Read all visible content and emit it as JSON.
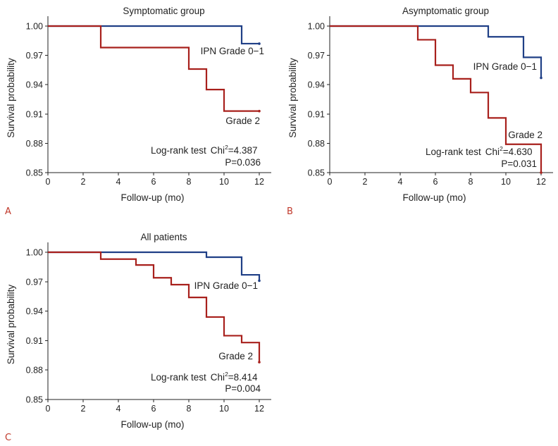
{
  "colors": {
    "ipn_grade_0_1": "#1f3f86",
    "grade_2": "#a8201c"
  },
  "chart_data": [
    {
      "type": "line",
      "step": true,
      "panel_label": "A",
      "title": "Symptomatic group",
      "xlabel": "Follow-up (mo)",
      "ylabel": "Survival probability",
      "xlim": [
        0,
        12
      ],
      "ylim": [
        0.85,
        1.0
      ],
      "xticks": [
        "0",
        "2",
        "4",
        "6",
        "8",
        "10",
        "12"
      ],
      "yticks": [
        "0.85",
        "0.88",
        "0.91",
        "0.94",
        "0.97",
        "1.00"
      ],
      "series": [
        {
          "name": "IPN Grade 0−1",
          "color_key": "ipn_grade_0_1",
          "x": [
            0,
            11,
            12
          ],
          "y": [
            1.0,
            0.982,
            0.982
          ]
        },
        {
          "name": "Grade 2",
          "color_key": "grade_2",
          "x": [
            0,
            3,
            8,
            9,
            10,
            12
          ],
          "y": [
            1.0,
            0.978,
            0.956,
            0.935,
            0.913,
            0.913
          ]
        }
      ],
      "stat": {
        "test": "Log-rank test",
        "chi_label": "Chi",
        "chi_sup": "2",
        "chi_value": "=4.387",
        "p": "P=0.036"
      }
    },
    {
      "type": "line",
      "step": true,
      "panel_label": "B",
      "title": "Asymptomatic group",
      "xlabel": "Follow-up (mo)",
      "ylabel": "Survival probability",
      "xlim": [
        0,
        12
      ],
      "ylim": [
        0.85,
        1.0
      ],
      "xticks": [
        "0",
        "2",
        "4",
        "6",
        "8",
        "10",
        "12"
      ],
      "yticks": [
        "0.85",
        "0.88",
        "0.91",
        "0.94",
        "0.97",
        "1.00"
      ],
      "series": [
        {
          "name": "IPN Grade 0−1",
          "color_key": "ipn_grade_0_1",
          "x": [
            0,
            9,
            11,
            12
          ],
          "y": [
            1.0,
            0.989,
            0.968,
            0.947
          ]
        },
        {
          "name": "Grade 2",
          "color_key": "grade_2",
          "x": [
            0,
            5,
            6,
            7,
            8,
            9,
            10,
            12
          ],
          "y": [
            1.0,
            0.986,
            0.96,
            0.946,
            0.932,
            0.906,
            0.879,
            0.85
          ]
        }
      ],
      "stat": {
        "test": "Log-rank test",
        "chi_label": "Chi",
        "chi_sup": "2",
        "chi_value": "=4.630",
        "p": "P=0.031"
      }
    },
    {
      "type": "line",
      "step": true,
      "panel_label": "C",
      "title": "All patients",
      "xlabel": "Follow-up (mo)",
      "ylabel": "Survival probability",
      "xlim": [
        0,
        12
      ],
      "ylim": [
        0.85,
        1.0
      ],
      "xticks": [
        "0",
        "2",
        "4",
        "6",
        "8",
        "10",
        "12"
      ],
      "yticks": [
        "0.85",
        "0.88",
        "0.91",
        "0.94",
        "0.97",
        "1.00"
      ],
      "series": [
        {
          "name": "IPN Grade 0−1",
          "color_key": "ipn_grade_0_1",
          "x": [
            0,
            9,
            11,
            12
          ],
          "y": [
            1.0,
            0.995,
            0.977,
            0.971
          ]
        },
        {
          "name": "Grade 2",
          "color_key": "grade_2",
          "x": [
            0,
            3,
            5,
            6,
            7,
            8,
            9,
            10,
            11,
            12
          ],
          "y": [
            1.0,
            0.993,
            0.987,
            0.974,
            0.967,
            0.954,
            0.934,
            0.915,
            0.908,
            0.888
          ]
        }
      ],
      "stat": {
        "test": "Log-rank test",
        "chi_label": "Chi",
        "chi_sup": "2",
        "chi_value": "=8.414",
        "p": "P=0.004"
      }
    }
  ]
}
